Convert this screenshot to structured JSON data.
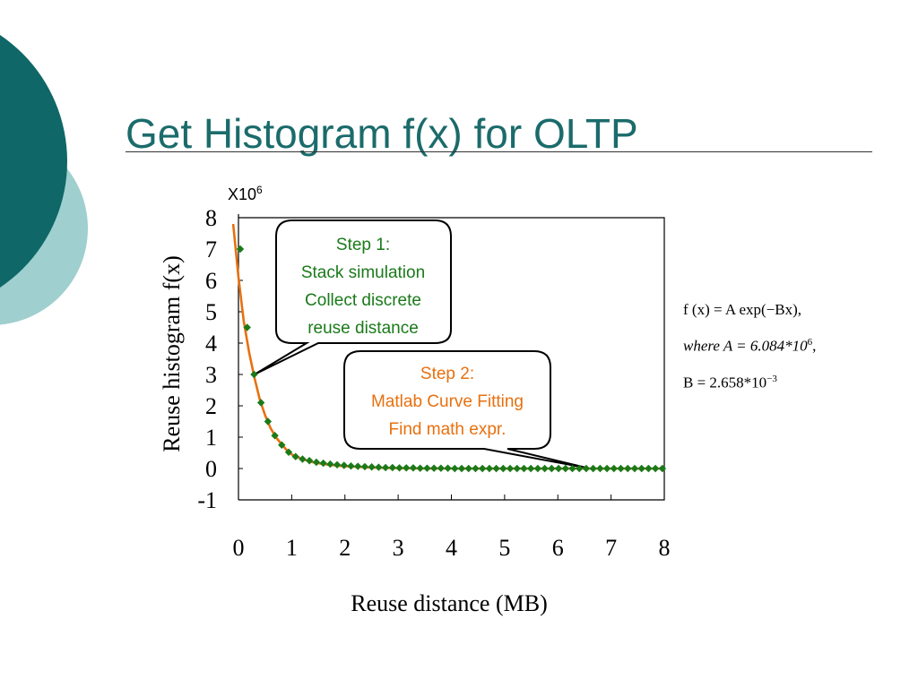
{
  "slide": {
    "title": "Get Histogram f(x) for OLTP"
  },
  "theme": {
    "teal_dark": "#0f6767",
    "teal_light": "#9fcfcf",
    "title_color": "#1b6b6b",
    "fit_color": "#e8700f",
    "marker_color": "#1a7a1a"
  },
  "chart_data": {
    "type": "scatter",
    "title": "",
    "xlabel": "Reuse distance (MB)",
    "ylabel": "Reuse histogram f(x)",
    "y_multiplier_base": "X10",
    "y_multiplier_exp": "6",
    "xlim": [
      0,
      8
    ],
    "ylim": [
      -1,
      8
    ],
    "x_ticks": [
      "0",
      "1",
      "2",
      "3",
      "4",
      "5",
      "6",
      "7",
      "8"
    ],
    "y_ticks": [
      "-1",
      "0",
      "1",
      "2",
      "3",
      "4",
      "5",
      "6",
      "7",
      "8"
    ],
    "grid": false,
    "series": [
      {
        "kind": "scatter",
        "marker": "diamond",
        "x": [
          0.0,
          0.13,
          0.26,
          0.39,
          0.52,
          0.65,
          0.78,
          0.91,
          1.04,
          1.17,
          1.3,
          1.43,
          1.56,
          1.69,
          1.82,
          1.95,
          2.08,
          2.21,
          2.34,
          2.47,
          2.6,
          2.73,
          2.86,
          2.99,
          3.12,
          3.25,
          3.38,
          3.51,
          3.64,
          3.77,
          3.9,
          4.03,
          4.16,
          4.29,
          4.42,
          4.55,
          4.68,
          4.81,
          4.94,
          5.07,
          5.2,
          5.33,
          5.46,
          5.59,
          5.72,
          5.85,
          5.98,
          6.11,
          6.24,
          6.37,
          6.5,
          6.63,
          6.76,
          6.89,
          7.02,
          7.15,
          7.28,
          7.41,
          7.54,
          7.67,
          7.8,
          7.93
        ],
        "y": [
          7.0,
          4.5,
          3.0,
          2.1,
          1.5,
          1.05,
          0.75,
          0.52,
          0.38,
          0.3,
          0.25,
          0.2,
          0.17,
          0.14,
          0.12,
          0.1,
          0.08,
          0.07,
          0.06,
          0.05,
          0.04,
          0.03,
          0.03,
          0.02,
          0.02,
          0.02,
          0.01,
          0.01,
          0.01,
          0.01,
          0.01,
          0.0,
          0.0,
          0.0,
          0.0,
          0.0,
          0.0,
          0.0,
          0.0,
          0.0,
          0.0,
          0.0,
          0.0,
          0.0,
          0.0,
          0.0,
          0.0,
          0.0,
          0.0,
          0.0,
          0.0,
          0.0,
          0.0,
          0.0,
          0.0,
          0.0,
          0.0,
          0.0,
          0.0,
          0.0,
          0.0,
          0.0
        ]
      },
      {
        "kind": "fit",
        "line": "solid",
        "formula": "A*exp(-B*x)",
        "x": [
          -0.1,
          0.0,
          0.1,
          0.2,
          0.3,
          0.4,
          0.5,
          0.6,
          0.7,
          0.8,
          0.9,
          1.0,
          1.2,
          1.4,
          1.6,
          1.8,
          2.0,
          2.5,
          3.0,
          3.5,
          4.0,
          5.0,
          6.0,
          7.0,
          8.0
        ],
        "y": [
          7.8,
          6.1,
          4.7,
          3.7,
          2.9,
          2.2,
          1.7,
          1.3,
          1.0,
          0.8,
          0.6,
          0.45,
          0.3,
          0.2,
          0.14,
          0.1,
          0.07,
          0.03,
          0.01,
          0.0,
          0.0,
          0.0,
          0.0,
          0.0,
          0.0
        ]
      }
    ],
    "annotations": [
      {
        "id": "step1",
        "lines": [
          "Step 1:",
          "Stack simulation",
          "Collect discrete",
          "reuse distance"
        ],
        "points_to": [
          0.3,
          3.0
        ],
        "color": "#1a7a1a"
      },
      {
        "id": "step2",
        "lines": [
          "Step 2:",
          "Matlab Curve Fitting",
          "Find math expr."
        ],
        "points_to": [
          6.6,
          0.0
        ],
        "color": "#e8700f"
      }
    ]
  },
  "formula": {
    "line1": "f (x) = A exp(−Bx),",
    "line2_prefix": "where A = 6.084*10",
    "line2_exp": "6",
    "line2_suffix": ",",
    "line3_prefix": "B = 2.658*10",
    "line3_exp": "−3"
  }
}
